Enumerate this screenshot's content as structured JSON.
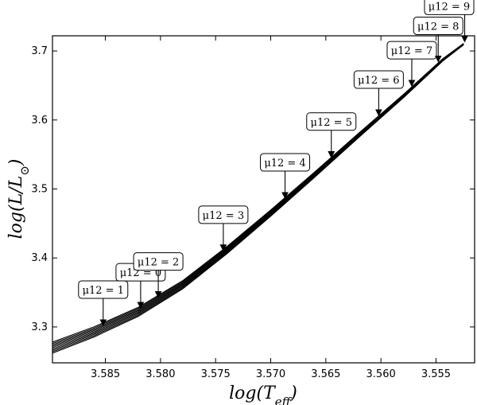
{
  "chart_data": {
    "type": "line",
    "title": "",
    "xlabel": "log(T_eff)",
    "ylabel": "log(L/L⊙)",
    "xlim": [
      3.5898,
      3.5515
    ],
    "ylim": [
      3.248,
      3.722
    ],
    "x_inverted": true,
    "grid": false,
    "xticks": [
      {
        "v": 3.585,
        "label": "3.585"
      },
      {
        "v": 3.58,
        "label": "3.580"
      },
      {
        "v": 3.575,
        "label": "3.575"
      },
      {
        "v": 3.57,
        "label": "3.570"
      },
      {
        "v": 3.565,
        "label": "3.565"
      },
      {
        "v": 3.56,
        "label": "3.560"
      },
      {
        "v": 3.555,
        "label": "3.555"
      }
    ],
    "yticks": [
      {
        "v": 3.3,
        "label": "3.3"
      },
      {
        "v": 3.4,
        "label": "3.4"
      },
      {
        "v": 3.5,
        "label": "3.5"
      },
      {
        "v": 3.6,
        "label": "3.6"
      },
      {
        "v": 3.7,
        "label": "3.7"
      }
    ],
    "track": {
      "x": [
        3.5898,
        3.586,
        3.582,
        3.578,
        3.574,
        3.57,
        3.566,
        3.562,
        3.558,
        3.5544,
        3.5525
      ],
      "y": [
        3.27,
        3.293,
        3.322,
        3.361,
        3.411,
        3.465,
        3.521,
        3.578,
        3.634,
        3.687,
        3.71
      ],
      "n_lines": 9,
      "spread_start": 0.016,
      "spread_end": 0.002
    },
    "annotations": [
      {
        "label": "μ12 = 0",
        "x": 3.5818,
        "y": 3.302
      },
      {
        "label": "μ12 = 1",
        "x": 3.5852,
        "y": 3.323
      },
      {
        "label": "μ12 = 2",
        "x": 3.5802,
        "y": 3.39
      },
      {
        "label": "μ12 = 3",
        "x": 3.5743,
        "y": 3.455
      },
      {
        "label": "μ12 = 4",
        "x": 3.5687,
        "y": 3.513
      },
      {
        "label": "μ12 = 5",
        "x": 3.5645,
        "y": 3.561
      },
      {
        "label": "μ12 = 6",
        "x": 3.5602,
        "y": 3.603
      },
      {
        "label": "μ12 = 7",
        "x": 3.5572,
        "y": 3.64
      },
      {
        "label": "μ12 = 8",
        "x": 3.5548,
        "y": 3.676
      },
      {
        "label": "μ12 = 9",
        "x": 3.5524,
        "y": 3.707
      }
    ]
  }
}
